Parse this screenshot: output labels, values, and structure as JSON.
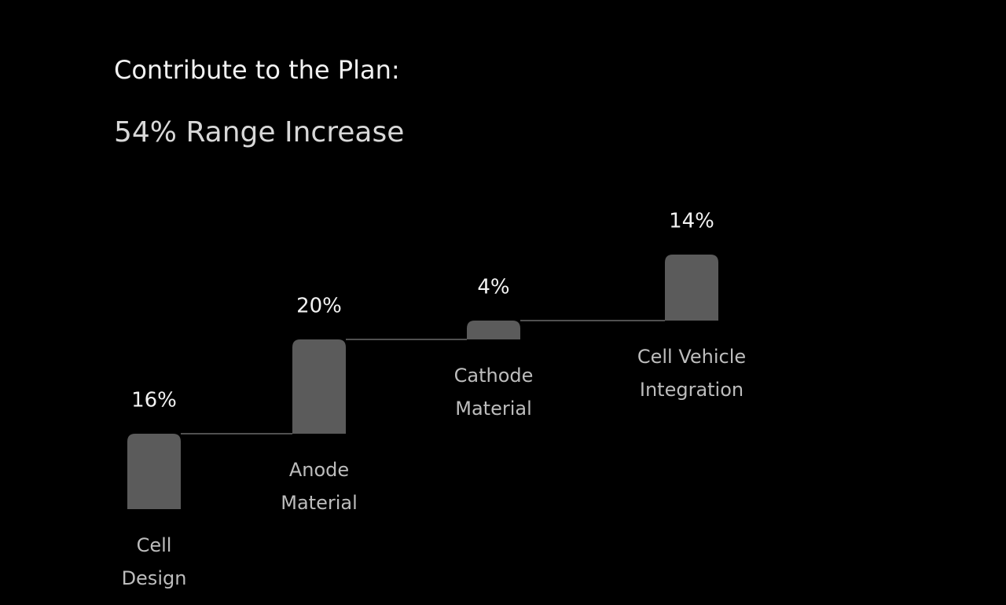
{
  "chart_data": {
    "type": "waterfall",
    "title": "Contribute to the Plan:",
    "subtitle": "54% Range Increase",
    "categories": [
      [
        "Cell",
        "Design"
      ],
      [
        "Anode",
        "Material"
      ],
      [
        "Cathode",
        "Material"
      ],
      [
        "Cell Vehicle",
        "Integration"
      ]
    ],
    "values": [
      16,
      20,
      4,
      14
    ],
    "value_labels": [
      "16%",
      "20%",
      "4%",
      "14%"
    ],
    "color": "#5b5b5b"
  }
}
